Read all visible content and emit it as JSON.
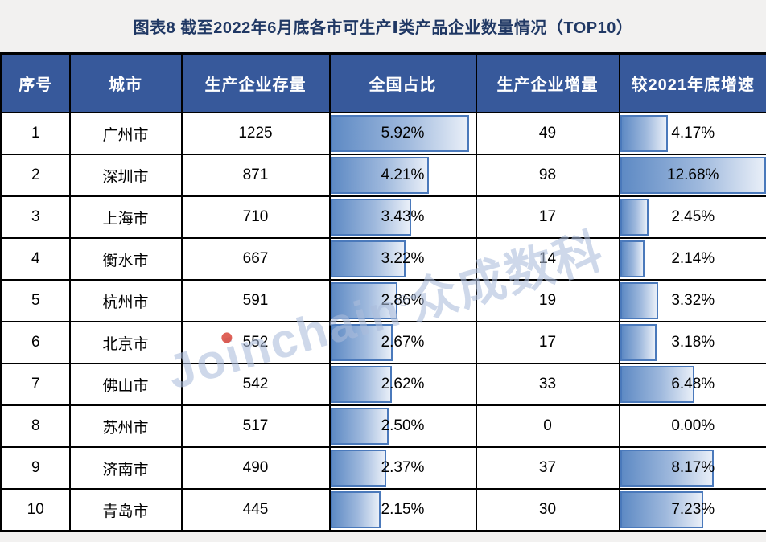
{
  "title": "图表8 截至2022年6月底各市可生产Ⅰ类产品企业数量情况（TOP10）",
  "watermark": {
    "brand_prefix": "Jo",
    "brand_dot_letter": "i",
    "brand_suffix": "nchain",
    "registered_mark": "®",
    "brand_cjk": "众成数科"
  },
  "colors": {
    "page_bg": "#F2F1F0",
    "title_text": "#203864",
    "header_bg": "#37599B",
    "header_text": "#FFFFFF",
    "grid_border": "#000000",
    "bar_border": "#4A79BB",
    "bar_gradient_start": "#5E8AC4",
    "bar_gradient_end": "#E9EFF8",
    "watermark_text": "#AABBDA",
    "watermark_dot": "#D9473B"
  },
  "chart_data": {
    "type": "table",
    "title": "图表8 截至2022年6月底各市可生产Ⅰ类产品企业数量情况（TOP10）",
    "columns": [
      "序号",
      "城市",
      "生产企业存量",
      "全国占比",
      "生产企业增量",
      "较2021年底增速"
    ],
    "bar_columns": {
      "share": {
        "column": "全国占比",
        "max": 5.92,
        "fill_factor": 0.96
      },
      "growth": {
        "column": "较2021年底增速",
        "max": 12.68,
        "fill_factor": 1.0
      }
    },
    "rows": [
      {
        "rank": 1,
        "city": "广州市",
        "stock": 1225,
        "share_pct": 5.92,
        "increase": 49,
        "growth_pct": 4.17
      },
      {
        "rank": 2,
        "city": "深圳市",
        "stock": 871,
        "share_pct": 4.21,
        "increase": 98,
        "growth_pct": 12.68
      },
      {
        "rank": 3,
        "city": "上海市",
        "stock": 710,
        "share_pct": 3.43,
        "increase": 17,
        "growth_pct": 2.45
      },
      {
        "rank": 4,
        "city": "衡水市",
        "stock": 667,
        "share_pct": 3.22,
        "increase": 14,
        "growth_pct": 2.14
      },
      {
        "rank": 5,
        "city": "杭州市",
        "stock": 591,
        "share_pct": 2.86,
        "increase": 19,
        "growth_pct": 3.32
      },
      {
        "rank": 6,
        "city": "北京市",
        "stock": 552,
        "share_pct": 2.67,
        "increase": 17,
        "growth_pct": 3.18
      },
      {
        "rank": 7,
        "city": "佛山市",
        "stock": 542,
        "share_pct": 2.62,
        "increase": 33,
        "growth_pct": 6.48
      },
      {
        "rank": 8,
        "city": "苏州市",
        "stock": 517,
        "share_pct": 2.5,
        "increase": 0,
        "growth_pct": 0.0
      },
      {
        "rank": 9,
        "city": "济南市",
        "stock": 490,
        "share_pct": 2.37,
        "increase": 37,
        "growth_pct": 8.17
      },
      {
        "rank": 10,
        "city": "青岛市",
        "stock": 445,
        "share_pct": 2.15,
        "increase": 30,
        "growth_pct": 7.23
      }
    ]
  }
}
